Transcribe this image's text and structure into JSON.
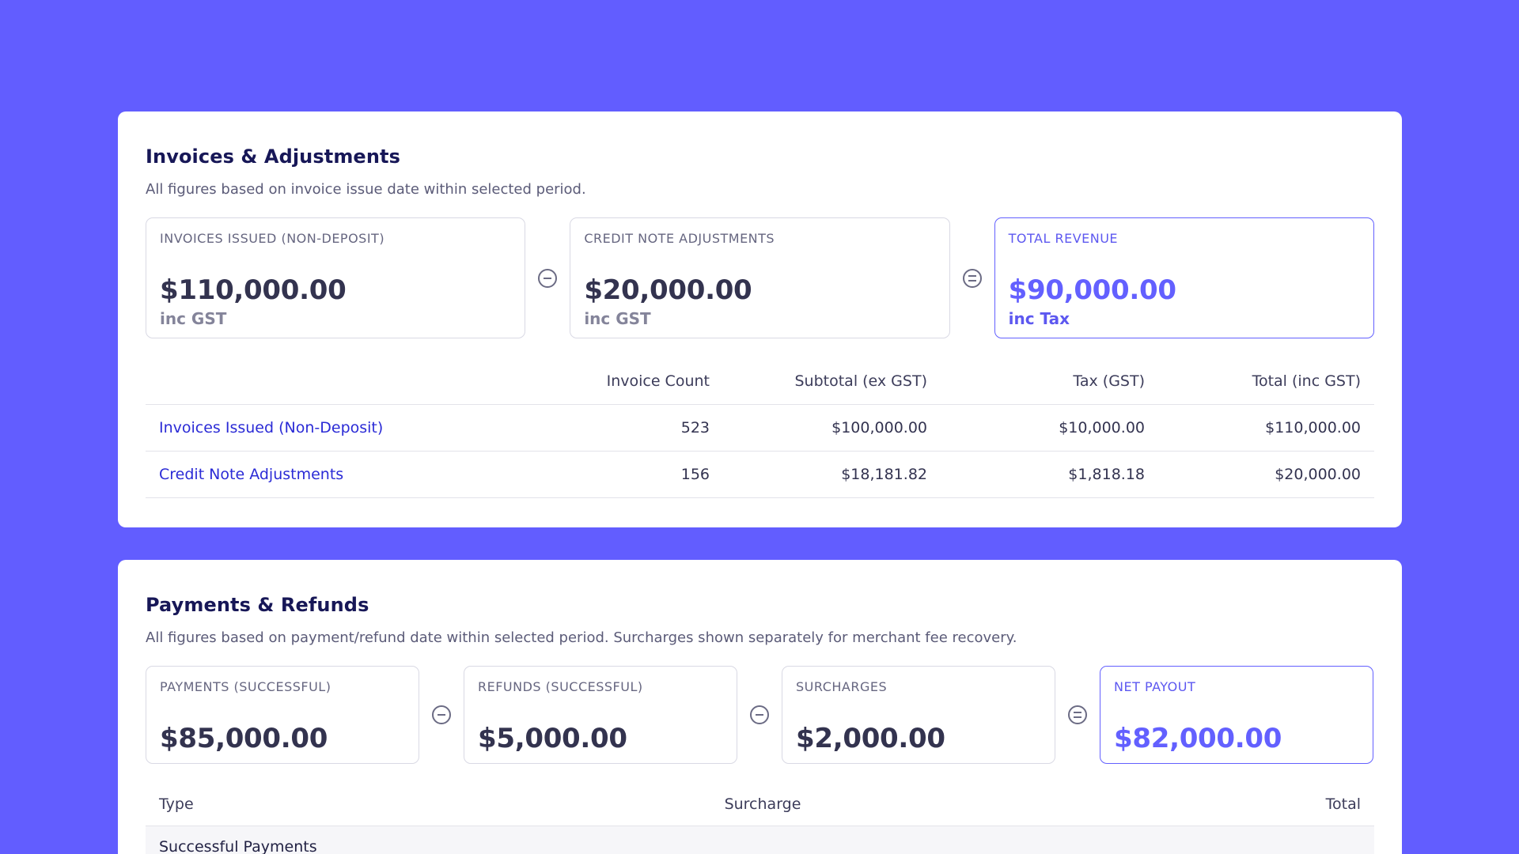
{
  "invoices_section": {
    "title": "Invoices & Adjustments",
    "subtitle": "All figures based on invoice issue date within selected period.",
    "metrics": [
      {
        "label": "INVOICES ISSUED (NON-DEPOSIT)",
        "value": "$110,000.00",
        "note": "inc GST"
      },
      {
        "label": "CREDIT NOTE ADJUSTMENTS",
        "value": "$20,000.00",
        "note": "inc GST"
      },
      {
        "label": "TOTAL REVENUE",
        "value": "$90,000.00",
        "note": "inc Tax"
      }
    ],
    "table": {
      "headers": [
        "",
        "Invoice Count",
        "Subtotal (ex GST)",
        "Tax (GST)",
        "Total (inc GST)"
      ],
      "rows": [
        {
          "name": "Invoices Issued (Non-Deposit)",
          "count": "523",
          "subtotal": "$100,000.00",
          "tax": "$10,000.00",
          "total": "$110,000.00"
        },
        {
          "name": "Credit Note Adjustments",
          "count": "156",
          "subtotal": "$18,181.82",
          "tax": "$1,818.18",
          "total": "$20,000.00"
        }
      ]
    }
  },
  "payments_section": {
    "title": "Payments & Refunds",
    "subtitle": "All figures based on payment/refund date within selected period. Surcharges shown separately for merchant fee recovery.",
    "metrics": [
      {
        "label": "PAYMENTS (SUCCESSFUL)",
        "value": "$85,000.00"
      },
      {
        "label": "REFUNDS (SUCCESSFUL)",
        "value": "$5,000.00"
      },
      {
        "label": "SURCHARGES",
        "value": "$2,000.00"
      },
      {
        "label": "NET PAYOUT",
        "value": "$82,000.00"
      }
    ],
    "table": {
      "headers": [
        "Type",
        "Surcharge",
        "Total"
      ],
      "group_label": "Successful Payments"
    }
  },
  "colors": {
    "background": "#625dff",
    "accent": "#6360ff",
    "link": "#2b2bd6"
  },
  "icons": [
    "minus-circle-icon",
    "equals-circle-icon"
  ]
}
